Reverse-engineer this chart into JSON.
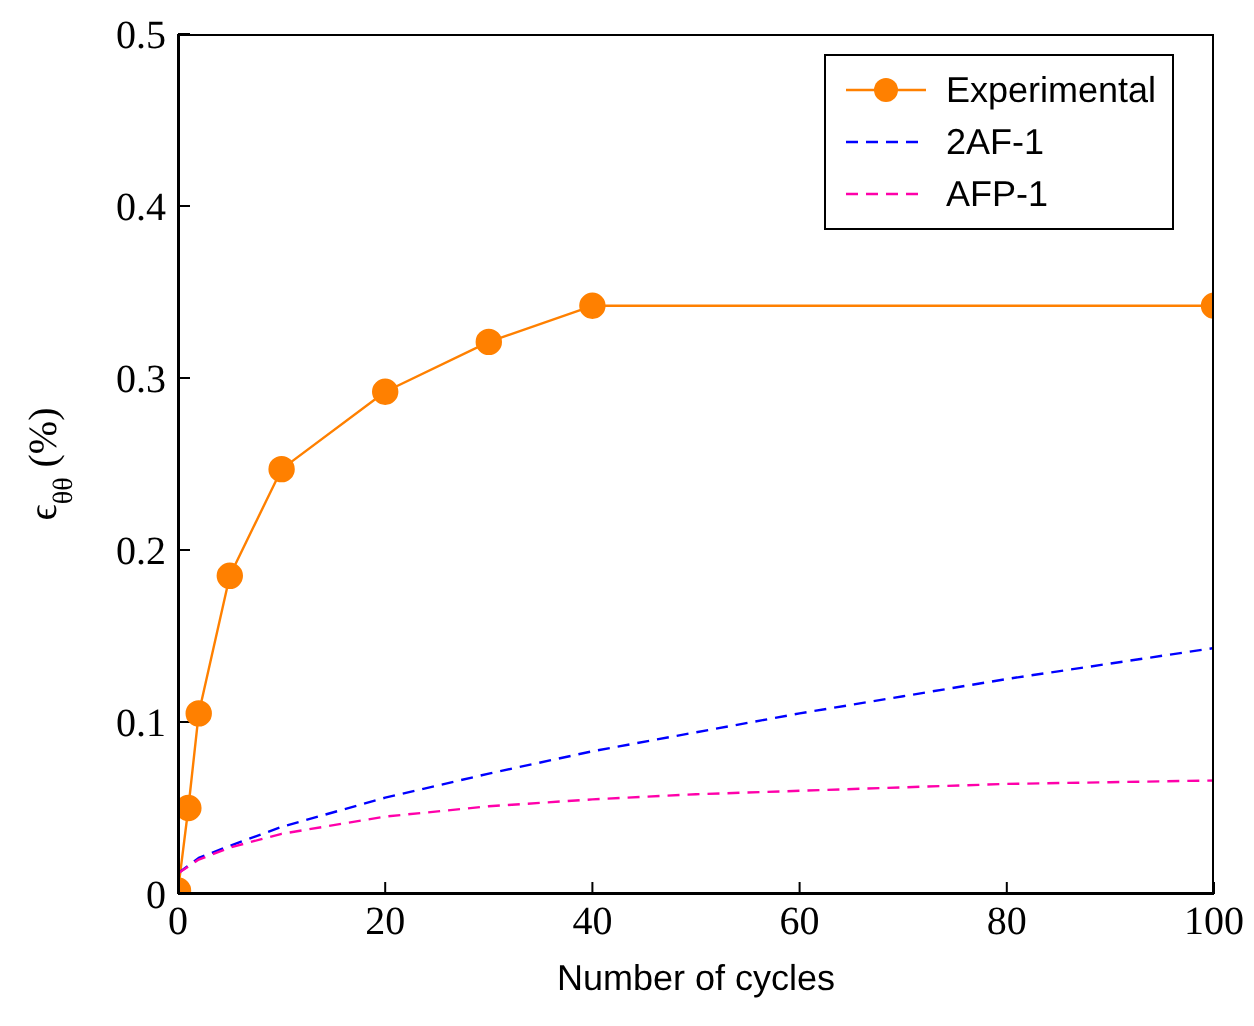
{
  "chart_data": {
    "type": "line",
    "xlabel": "Number of cycles",
    "ylabel": "ϵ$_{θθ}$ (%)",
    "xlim": [
      0,
      100
    ],
    "xticks": [
      0,
      20,
      40,
      60,
      80,
      100
    ],
    "ylim": [
      0,
      0.5
    ],
    "yticks": [
      0,
      0.1,
      0.2,
      0.3,
      0.4,
      0.5
    ],
    "grid": false,
    "legend": "top right",
    "series": [
      {
        "name": "Experimental",
        "color": "#ff8000",
        "marker": "circle",
        "line_style": "solid",
        "x": [
          0,
          1,
          2,
          5,
          10,
          20,
          30,
          40,
          100
        ],
        "values": [
          0.002,
          0.05,
          0.105,
          0.185,
          0.247,
          0.292,
          0.321,
          0.342,
          0.342
        ]
      },
      {
        "name": "2AF-1",
        "color": "#0000ff",
        "marker": "none",
        "line_style": "dashed",
        "x": [
          0,
          2,
          5,
          10,
          20,
          30,
          40,
          50,
          60,
          70,
          80,
          90,
          100
        ],
        "values": [
          0.012,
          0.021,
          0.028,
          0.039,
          0.056,
          0.07,
          0.083,
          0.094,
          0.105,
          0.115,
          0.125,
          0.134,
          0.143
        ]
      },
      {
        "name": "AFP-1",
        "color": "#ff00aa",
        "marker": "none",
        "line_style": "dashed",
        "x": [
          0,
          2,
          5,
          10,
          20,
          30,
          40,
          50,
          60,
          70,
          80,
          90,
          100
        ],
        "values": [
          0.012,
          0.02,
          0.027,
          0.035,
          0.045,
          0.051,
          0.055,
          0.058,
          0.06,
          0.062,
          0.064,
          0.065,
          0.066
        ]
      }
    ]
  }
}
